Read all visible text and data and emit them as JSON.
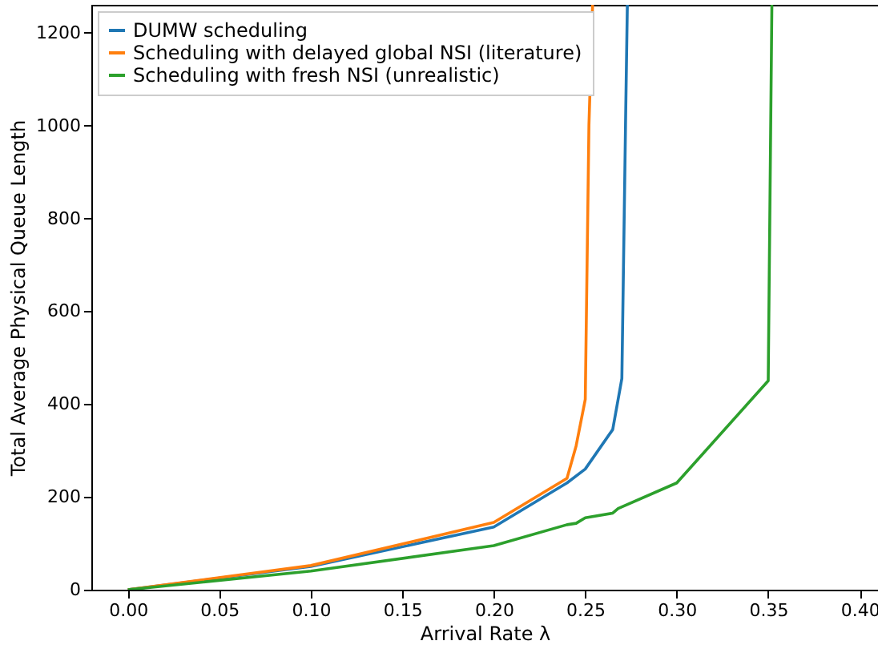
{
  "chart_data": {
    "type": "line",
    "xlabel": "Arrival Rate λ",
    "ylabel": "Total Average Physical Queue Length",
    "xlim": [
      -0.02,
      0.41
    ],
    "ylim": [
      0,
      1260
    ],
    "xticks": [
      {
        "value": 0,
        "label": "0.00"
      },
      0.05,
      {
        "value": 0.1,
        "label": "0.10"
      },
      0.15,
      {
        "value": 0.2,
        "label": "0.20"
      },
      0.25,
      {
        "value": 0.3,
        "label": "0.30"
      },
      0.35,
      {
        "value": 0.4,
        "label": "0.40"
      }
    ],
    "yticks": [
      0,
      200,
      400,
      600,
      800,
      1000,
      1200
    ],
    "grid": false,
    "legend": "top left",
    "series": [
      {
        "name": "DUMW scheduling",
        "color": "#1f77b4",
        "x": [
          0,
          0.1,
          0.2,
          0.24,
          0.25,
          0.265,
          0.27,
          0.272,
          0.273
        ],
        "values": [
          0,
          50,
          135,
          230,
          260,
          345,
          455,
          1000,
          1260
        ]
      },
      {
        "name": "Scheduling with delayed global NSI (literature)",
        "color": "#ff7f0e",
        "x": [
          0,
          0.1,
          0.2,
          0.24,
          0.245,
          0.25,
          0.252,
          0.254
        ],
        "values": [
          0,
          52,
          145,
          240,
          310,
          410,
          1000,
          1260
        ]
      },
      {
        "name": "Scheduling with fresh NSI (unrealistic)",
        "color": "#2ca02c",
        "x": [
          0,
          0.1,
          0.2,
          0.24,
          0.245,
          0.25,
          0.265,
          0.268,
          0.3,
          0.35,
          0.352
        ],
        "values": [
          0,
          40,
          95,
          140,
          143,
          155,
          165,
          175,
          230,
          450,
          1260
        ]
      }
    ]
  }
}
